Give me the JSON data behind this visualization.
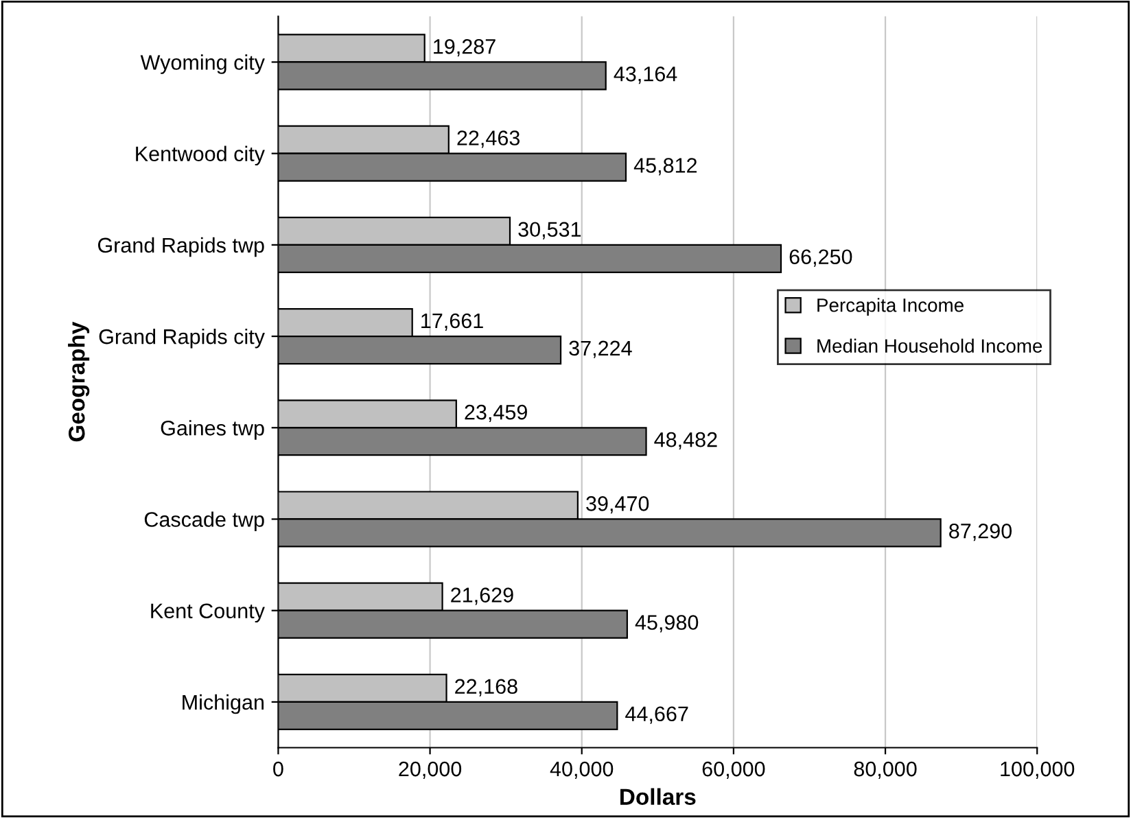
{
  "chart_data": {
    "type": "bar",
    "orientation": "horizontal",
    "xlabel": "Dollars",
    "ylabel": "Geography",
    "categories": [
      "Wyoming city",
      "Kentwood city",
      "Grand Rapids twp",
      "Grand Rapids city",
      "Gaines twp",
      "Cascade twp",
      "Kent County",
      "Michigan"
    ],
    "series": [
      {
        "name": "Percapita Income",
        "color": "#c0c0c0",
        "values": [
          19287,
          22463,
          30531,
          17661,
          23459,
          39470,
          21629,
          22168
        ],
        "value_labels": [
          "19,287",
          "22,463",
          "30,531",
          "17,661",
          "23,459",
          "39,470",
          "21,629",
          "22,168"
        ]
      },
      {
        "name": "Median Household Income",
        "color": "#808080",
        "values": [
          43164,
          45812,
          66250,
          37224,
          48482,
          87290,
          45980,
          44667
        ],
        "value_labels": [
          "43,164",
          "45,812",
          "66,250",
          "37,224",
          "48,482",
          "87,290",
          "45,980",
          "44,667"
        ]
      }
    ],
    "xlim": [
      0,
      100000
    ],
    "xticks": [
      0,
      {
        "value": 20000,
        "label": "20,000"
      },
      {
        "value": 40000,
        "label": "40,000"
      },
      {
        "value": 60000,
        "label": "60,000"
      },
      {
        "value": 80000,
        "label": "80,000"
      },
      {
        "value": 100000,
        "label": "100,000"
      }
    ],
    "grid": "x",
    "legend": "center right"
  }
}
